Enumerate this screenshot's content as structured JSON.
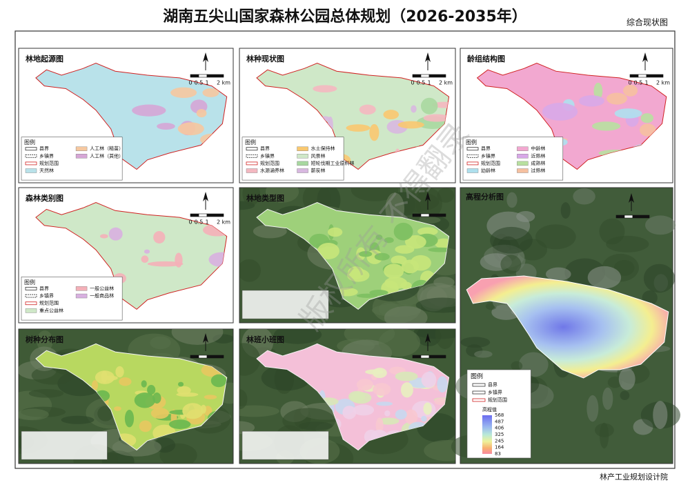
{
  "header": {
    "title": "湖南五尖山国家森林公园总体规划（2026-2035年）",
    "subtitle": "综合现状图"
  },
  "footer": "林产工业规划设计院",
  "watermark": "版权所有 不得翻录",
  "scale_labels": [
    "0",
    "0.5",
    "1",
    "2 km"
  ],
  "boundaries": [
    "县界",
    "乡镇界",
    "规划范围"
  ],
  "panels": [
    {
      "title": "林地起源图",
      "legend_title": "图例",
      "classes": [
        {
          "label": "天然林",
          "color": "#b9e2ea"
        },
        {
          "label": "人工林（精苗）",
          "color": "#f6c8a0"
        },
        {
          "label": "人工林（其他）",
          "color": "#d6a6d6"
        }
      ]
    },
    {
      "title": "林种现状图",
      "legend_title": "图例",
      "classes": [
        {
          "label": "水源涵养林",
          "color": "#f4b8c0"
        },
        {
          "label": "水土保持林",
          "color": "#f9c870"
        },
        {
          "label": "风景林",
          "color": "#cfe8c8"
        },
        {
          "label": "短轮伐期工业原料林",
          "color": "#a8d8a0"
        },
        {
          "label": "薪炭林",
          "color": "#d8b8e0"
        }
      ]
    },
    {
      "title": "龄组结构图",
      "legend_title": "图例",
      "classes": [
        {
          "label": "幼龄林",
          "color": "#aee0ee"
        },
        {
          "label": "中龄林",
          "color": "#f2a8d0"
        },
        {
          "label": "近熟林",
          "color": "#d8a8e8"
        },
        {
          "label": "成熟林",
          "color": "#b8e0a0"
        },
        {
          "label": "过熟林",
          "color": "#f6c0a0"
        }
      ]
    },
    {
      "title": "森林类别图",
      "legend_title": "图例",
      "classes": [
        {
          "label": "重点公益林",
          "color": "#cfe8c8"
        },
        {
          "label": "一般公益林",
          "color": "#f4b0b8"
        },
        {
          "label": "一般商品林",
          "color": "#d8b0e0"
        }
      ]
    },
    {
      "title": "林地类型图"
    },
    {
      "title": "树种分布图"
    },
    {
      "title": "林班小班图"
    }
  ],
  "elevation": {
    "title": "高程分析图",
    "legend_title": "图例",
    "ramp_title": "高程值",
    "ramp_labels": [
      "568",
      "487",
      "406",
      "325",
      "245",
      "164",
      "83"
    ]
  }
}
